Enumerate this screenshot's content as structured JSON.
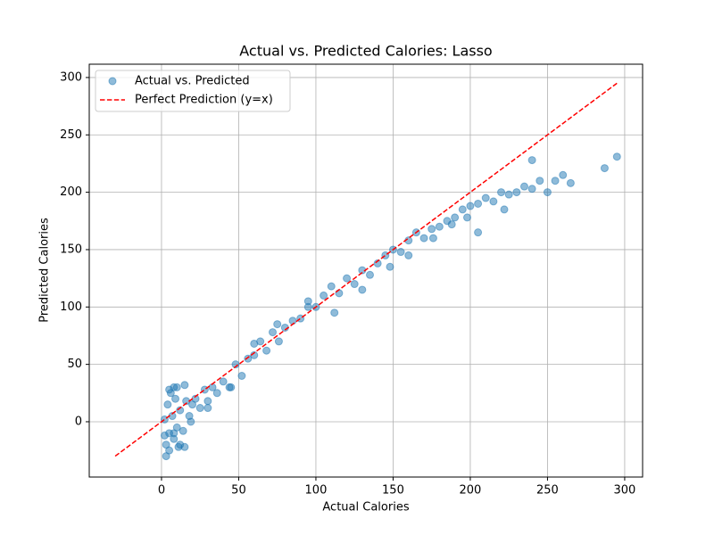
{
  "chart_data": {
    "type": "scatter",
    "title": "Actual vs. Predicted Calories: Lasso",
    "xlabel": "Actual Calories",
    "ylabel": "Predicted Calories",
    "xlim": [
      -46.8,
      311.6
    ],
    "ylim": [
      -48.2,
      311.6
    ],
    "xticks": [
      0,
      50,
      100,
      150,
      200,
      250,
      300
    ],
    "yticks": [
      0,
      50,
      100,
      150,
      200,
      250,
      300
    ],
    "grid": true,
    "legend": "upper left",
    "series": [
      {
        "name": "Actual vs. Predicted",
        "type": "scatter",
        "color": "#1f77b4",
        "alpha": 0.5,
        "x": [
          2,
          3,
          4,
          5,
          6,
          7,
          8,
          9,
          10,
          12,
          14,
          16,
          18,
          20,
          3,
          5,
          8,
          11,
          15,
          19,
          22,
          25,
          28,
          30,
          33,
          36,
          40,
          44,
          48,
          52,
          56,
          60,
          64,
          68,
          72,
          76,
          80,
          85,
          90,
          95,
          100,
          105,
          110,
          115,
          120,
          125,
          130,
          135,
          140,
          145,
          150,
          155,
          160,
          165,
          170,
          175,
          180,
          185,
          190,
          195,
          200,
          205,
          210,
          215,
          220,
          225,
          230,
          235,
          240,
          245,
          250,
          255,
          260,
          265,
          287,
          295,
          240,
          222,
          205,
          198,
          188,
          176,
          160,
          148,
          130,
          112,
          95,
          75,
          60,
          45,
          30,
          12,
          8,
          15,
          2,
          5,
          10
        ],
        "values": [
          2,
          -20,
          15,
          -10,
          25,
          5,
          -15,
          20,
          -5,
          10,
          -8,
          18,
          5,
          15,
          -30,
          -25,
          30,
          -22,
          32,
          0,
          20,
          12,
          28,
          18,
          30,
          25,
          35,
          30,
          50,
          40,
          55,
          58,
          70,
          62,
          78,
          70,
          82,
          88,
          90,
          100,
          100,
          110,
          118,
          112,
          125,
          120,
          132,
          128,
          138,
          145,
          150,
          148,
          158,
          165,
          160,
          168,
          170,
          175,
          178,
          185,
          188,
          190,
          195,
          192,
          200,
          198,
          200,
          205,
          203,
          210,
          200,
          210,
          215,
          208,
          221,
          231,
          228,
          185,
          165,
          178,
          172,
          160,
          145,
          135,
          115,
          95,
          105,
          85,
          68,
          30,
          12,
          -20,
          -10,
          -22,
          -12,
          28,
          30
        ]
      },
      {
        "name": "Perfect Prediction (y=x)",
        "type": "line",
        "linestyle": "dashed",
        "color": "#ff0000",
        "x": [
          -30,
          295
        ],
        "values": [
          -30,
          295
        ]
      }
    ]
  }
}
